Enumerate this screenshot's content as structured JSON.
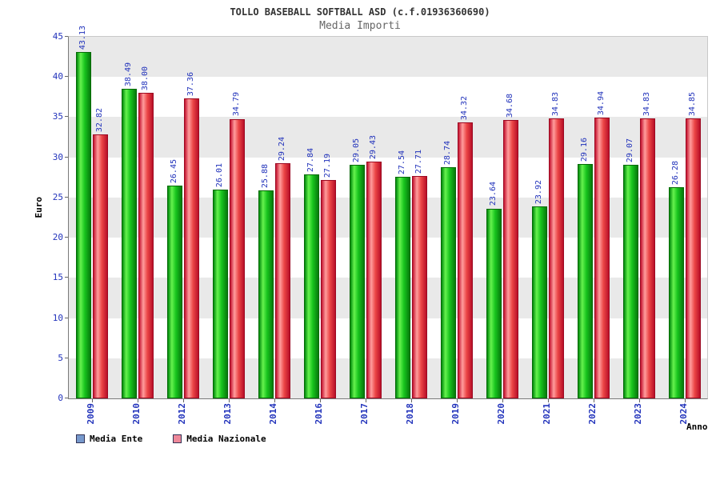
{
  "chart_data": {
    "type": "bar",
    "title": "TOLLO BASEBALL SOFTBALL ASD (c.f.01936360690)",
    "subtitle": "Media Importi",
    "xlabel": "Anno",
    "ylabel": "Euro",
    "ylim": [
      0,
      45
    ],
    "ytick_step": 5,
    "yticks": [
      0,
      5,
      10,
      15,
      20,
      25,
      30,
      35,
      40,
      45
    ],
    "grid_bands": true,
    "legend_position": "bottom-left",
    "categories": [
      "2009",
      "2010",
      "2012",
      "2013",
      "2014",
      "2016",
      "2017",
      "2018",
      "2019",
      "2020",
      "2021",
      "2022",
      "2023",
      "2024"
    ],
    "series": [
      {
        "name": "Media Ente",
        "bar_color": "#1ec41e",
        "values": [
          43.13,
          38.49,
          26.45,
          26.01,
          25.88,
          27.84,
          29.05,
          27.54,
          28.74,
          23.64,
          23.92,
          29.16,
          29.07,
          26.28
        ]
      },
      {
        "name": "Media Nazionale",
        "bar_color": "#ec4747",
        "values": [
          32.82,
          38.0,
          37.36,
          34.79,
          29.24,
          27.19,
          29.43,
          27.71,
          34.32,
          34.68,
          34.83,
          34.94,
          34.83,
          34.85
        ]
      }
    ],
    "legend": [
      {
        "label": "Media Ente",
        "marker_color": "#7799cc"
      },
      {
        "label": "Media Nazionale",
        "marker_color": "#ee8899"
      }
    ]
  },
  "colors": {
    "axis_text": "#2233bb",
    "band_gray": "#e9e9e9",
    "band_white": "#ffffff",
    "title_text": "#333333",
    "subtitle_text": "#666666"
  }
}
